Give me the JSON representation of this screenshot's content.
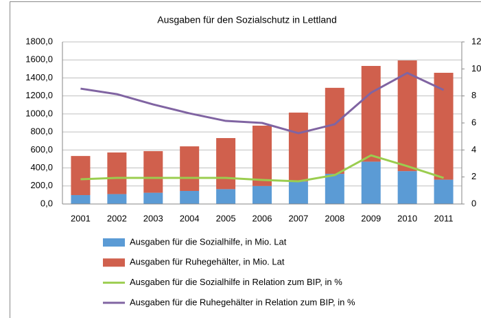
{
  "chart_data": {
    "type": "bar",
    "title": "Ausgaben für den Sozialschutz in Lettland",
    "categories": [
      "2001",
      "2002",
      "2003",
      "2004",
      "2005",
      "2006",
      "2007",
      "2008",
      "2009",
      "2010",
      "2011"
    ],
    "stacked": true,
    "series": [
      {
        "name": "Ausgaben für die Sozialhilfe, in Mio. Lat",
        "type": "bar",
        "color": "#5b9bd5",
        "values": [
          99,
          110,
          125,
          145,
          165,
          200,
          250,
          335,
          470,
          365,
          270
        ]
      },
      {
        "name": "Ausgaben für Ruhegehälter, in Mio. Lat",
        "type": "bar",
        "color": "#d0604d",
        "values": [
          434,
          462,
          462,
          495,
          567,
          670,
          765,
          955,
          1063,
          1229,
          1187
        ]
      },
      {
        "name": "Ausgaben für die Sozialhilfe in Relation zum BIP, in %",
        "type": "line",
        "axis": "y2",
        "color": "#9bcd4f",
        "values": [
          1.83,
          1.93,
          1.93,
          1.93,
          1.93,
          1.78,
          1.68,
          2.14,
          3.6,
          2.8,
          1.93
        ]
      },
      {
        "name": "Ausgaben für die Ruhegehälter in Relation zum BIP, in %",
        "type": "line",
        "axis": "y2",
        "color": "#8064a2",
        "values": [
          8.54,
          8.13,
          7.37,
          6.71,
          6.15,
          6.0,
          5.24,
          5.9,
          8.24,
          9.7,
          8.44
        ]
      }
    ],
    "ylim": [
      0,
      1800
    ],
    "yticks": [
      {
        "value": 0,
        "label": "0,0"
      },
      {
        "value": 200,
        "label": "200,0"
      },
      {
        "value": 400,
        "label": "400,0"
      },
      {
        "value": 600,
        "label": "600,0"
      },
      {
        "value": 800,
        "label": "800,0"
      },
      {
        "value": 1000,
        "label": "1000,0"
      },
      {
        "value": 1200,
        "label": "1200,0"
      },
      {
        "value": 1400,
        "label": "1400,0"
      },
      {
        "value": 1600,
        "label": "1600,0"
      },
      {
        "value": 1800,
        "label": "1800,0"
      }
    ],
    "y2lim": [
      0,
      12
    ],
    "y2ticks": [
      0,
      2,
      4,
      6,
      8,
      10,
      12
    ],
    "grid": true,
    "legend": "bottom"
  }
}
